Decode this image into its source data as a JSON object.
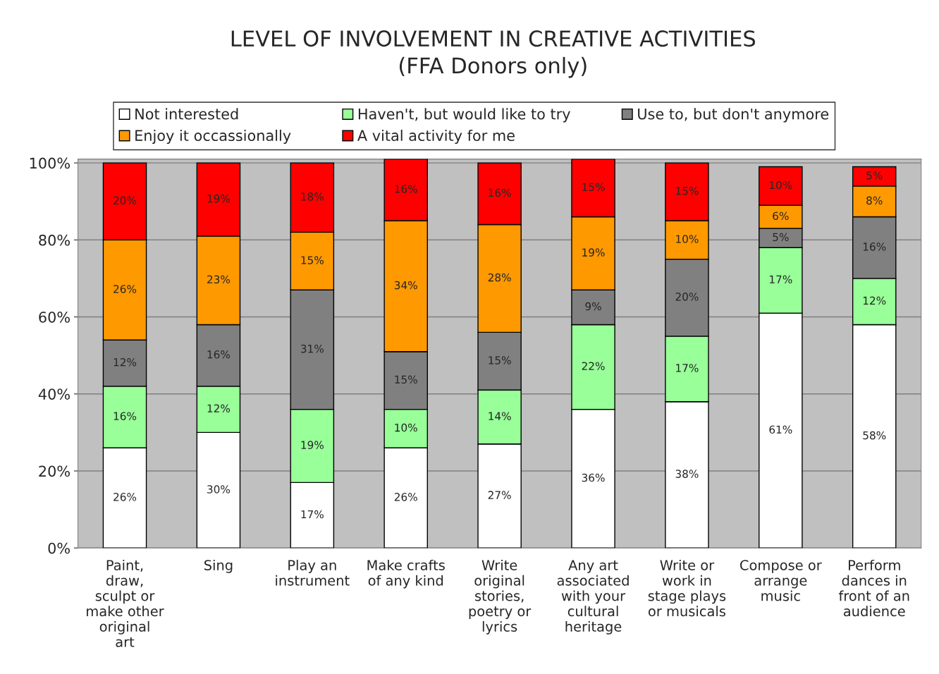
{
  "chart_data": {
    "type": "bar",
    "stacked": true,
    "title": "LEVEL OF INVOLVEMENT IN CREATIVE ACTIVITIES",
    "subtitle": "(FFA Donors only)",
    "categories": [
      "Paint, draw, sculpt or make other original art",
      "Sing",
      "Play an instrument",
      "Make crafts of any kind",
      "Write original stories, poetry or lyrics",
      "Any art associated with your cultural heritage",
      "Write or work in stage plays or musicals",
      "Compose or arrange music",
      "Perform dances in front of an audience"
    ],
    "series": [
      {
        "name": "Not interested",
        "color": "#ffffff",
        "values": [
          26,
          30,
          17,
          26,
          27,
          36,
          38,
          61,
          58
        ],
        "value_labels": [
          "26%",
          "30%",
          "17%",
          "26%",
          "27%",
          "36%",
          "38%",
          "61%",
          "58%"
        ]
      },
      {
        "name": "Haven't, but would like to try",
        "color": "#99ff99",
        "values": [
          16,
          12,
          19,
          10,
          14,
          22,
          17,
          17,
          12
        ],
        "value_labels": [
          "16%",
          "12%",
          "19%",
          "10%",
          "14%",
          "22%",
          "17%",
          "17%",
          "12%"
        ]
      },
      {
        "name": "Use to, but don't anymore",
        "color": "#808080",
        "values": [
          12,
          16,
          31,
          15,
          15,
          9,
          20,
          5,
          16
        ],
        "value_labels": [
          "12%",
          "16%",
          "31%",
          "15%",
          "15%",
          "9%",
          "20%",
          "5%",
          "16%"
        ]
      },
      {
        "name": "Enjoy it occassionally",
        "color": "#ff9900",
        "values": [
          26,
          23,
          15,
          34,
          28,
          19,
          10,
          6,
          8
        ],
        "value_labels": [
          "26%",
          "23%",
          "15%",
          "34%",
          "28%",
          "19%",
          "10%",
          "6%",
          "8%"
        ]
      },
      {
        "name": "A vital activity for me",
        "color": "#ff0000",
        "values": [
          20,
          19,
          18,
          16,
          16,
          15,
          15,
          10,
          5
        ],
        "value_labels": [
          "20%",
          "19%",
          "18%",
          "16%",
          "16%",
          "15%",
          "15%",
          "10%",
          "5%"
        ]
      }
    ],
    "ylim": [
      0,
      101
    ],
    "yticks": [
      {
        "value": 0,
        "label": "0%"
      },
      {
        "value": 20,
        "label": "20%"
      },
      {
        "value": 40,
        "label": "40%"
      },
      {
        "value": 60,
        "label": "60%"
      },
      {
        "value": 80,
        "label": "80%"
      },
      {
        "value": 100,
        "label": "100%"
      }
    ],
    "grid": "y",
    "legend": "top"
  }
}
